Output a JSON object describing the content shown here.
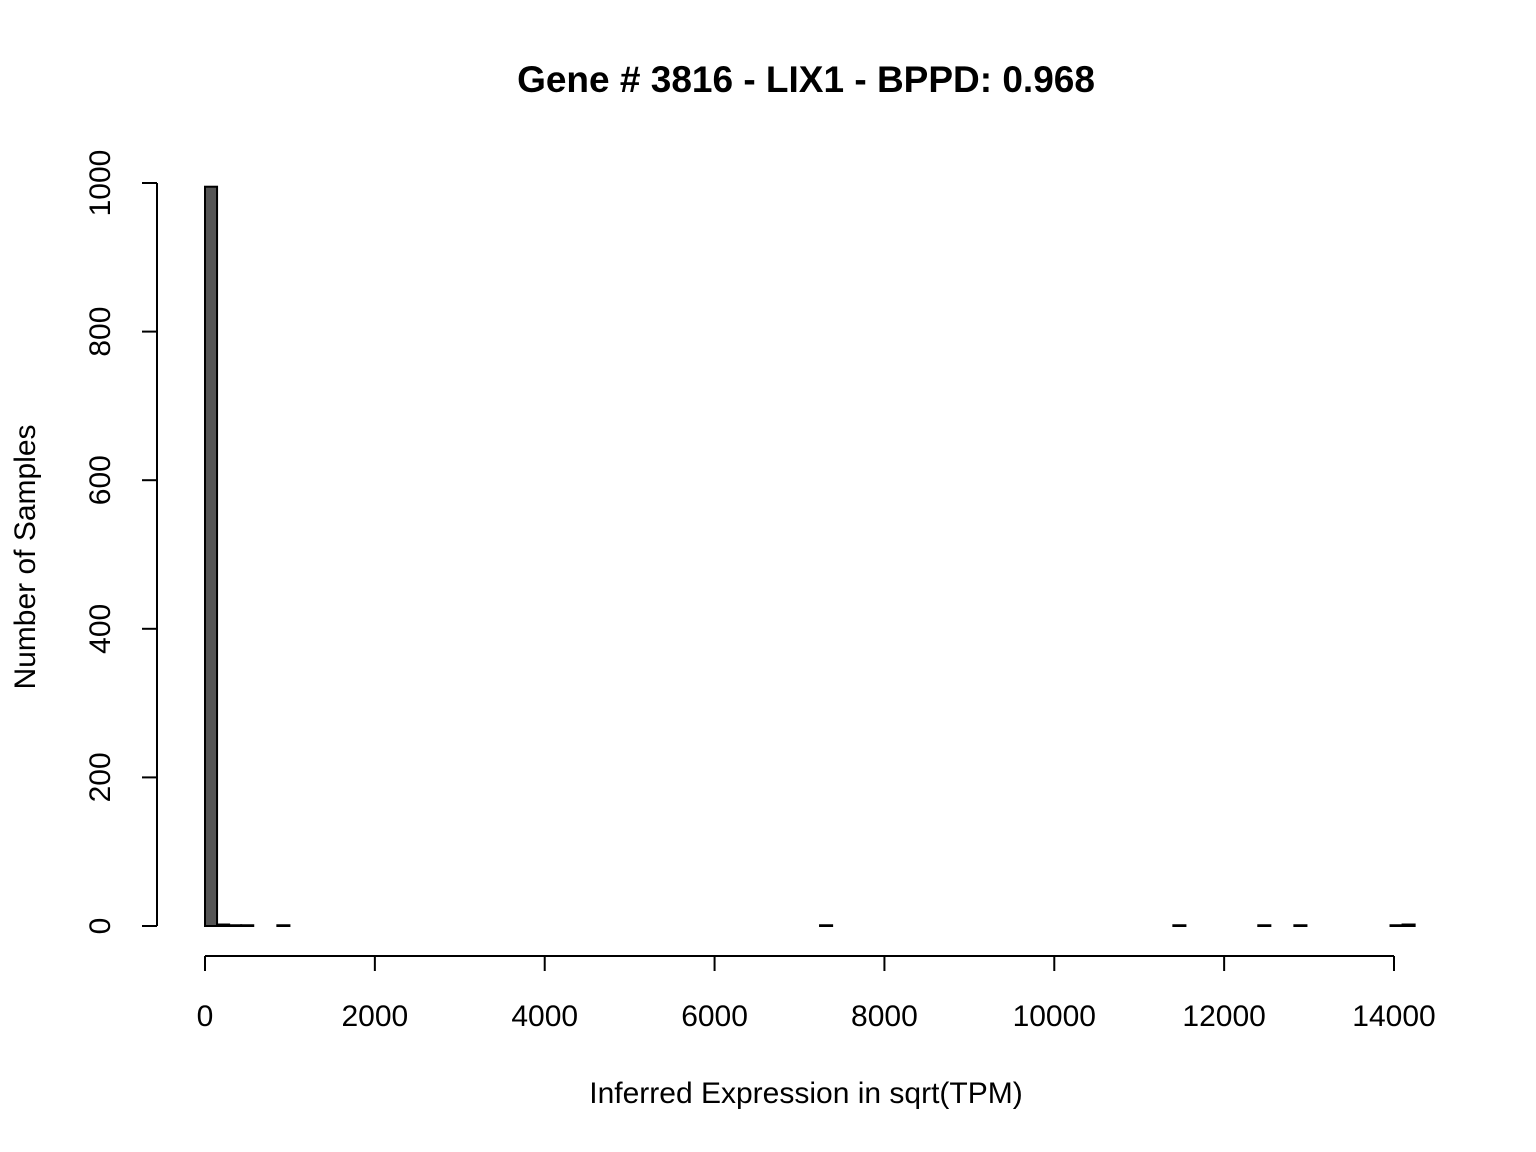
{
  "chart_data": {
    "type": "bar",
    "title": "Gene # 3816 - LIX1 - BPPD: 0.968",
    "xlabel": "Inferred Expression in sqrt(TPM)",
    "ylabel": "Number of Samples",
    "xlim": [
      0,
      14000
    ],
    "ylim": [
      0,
      1000
    ],
    "x_ticks": [
      "0",
      "2000",
      "4000",
      "6000",
      "8000",
      "10000",
      "12000",
      "14000"
    ],
    "x_tick_values": [
      0,
      2000,
      4000,
      6000,
      8000,
      10000,
      12000,
      14000
    ],
    "y_ticks": [
      "0",
      "200",
      "400",
      "600",
      "800",
      "1000"
    ],
    "y_tick_values": [
      0,
      200,
      400,
      600,
      800,
      1000
    ],
    "bin_width": 142,
    "bins": [
      {
        "start": 0,
        "end": 142,
        "count": 995
      },
      {
        "start": 142,
        "end": 284,
        "count": 2
      },
      {
        "start": 284,
        "end": 426,
        "count": 1
      },
      {
        "start": 426,
        "end": 568,
        "count": 1
      },
      {
        "start": 568,
        "end": 710,
        "count": 0
      },
      {
        "start": 710,
        "end": 852,
        "count": 0
      },
      {
        "start": 852,
        "end": 994,
        "count": 1
      },
      {
        "start": 7242,
        "end": 7384,
        "count": 1
      },
      {
        "start": 11402,
        "end": 11544,
        "count": 1
      },
      {
        "start": 12402,
        "end": 12544,
        "count": 1
      },
      {
        "start": 12827,
        "end": 12969,
        "count": 1
      },
      {
        "start": 13959,
        "end": 14101,
        "count": 1
      },
      {
        "start": 14101,
        "end": 14243,
        "count": 2
      }
    ],
    "bar_color": "#555555",
    "grid": false,
    "legend": "none"
  }
}
